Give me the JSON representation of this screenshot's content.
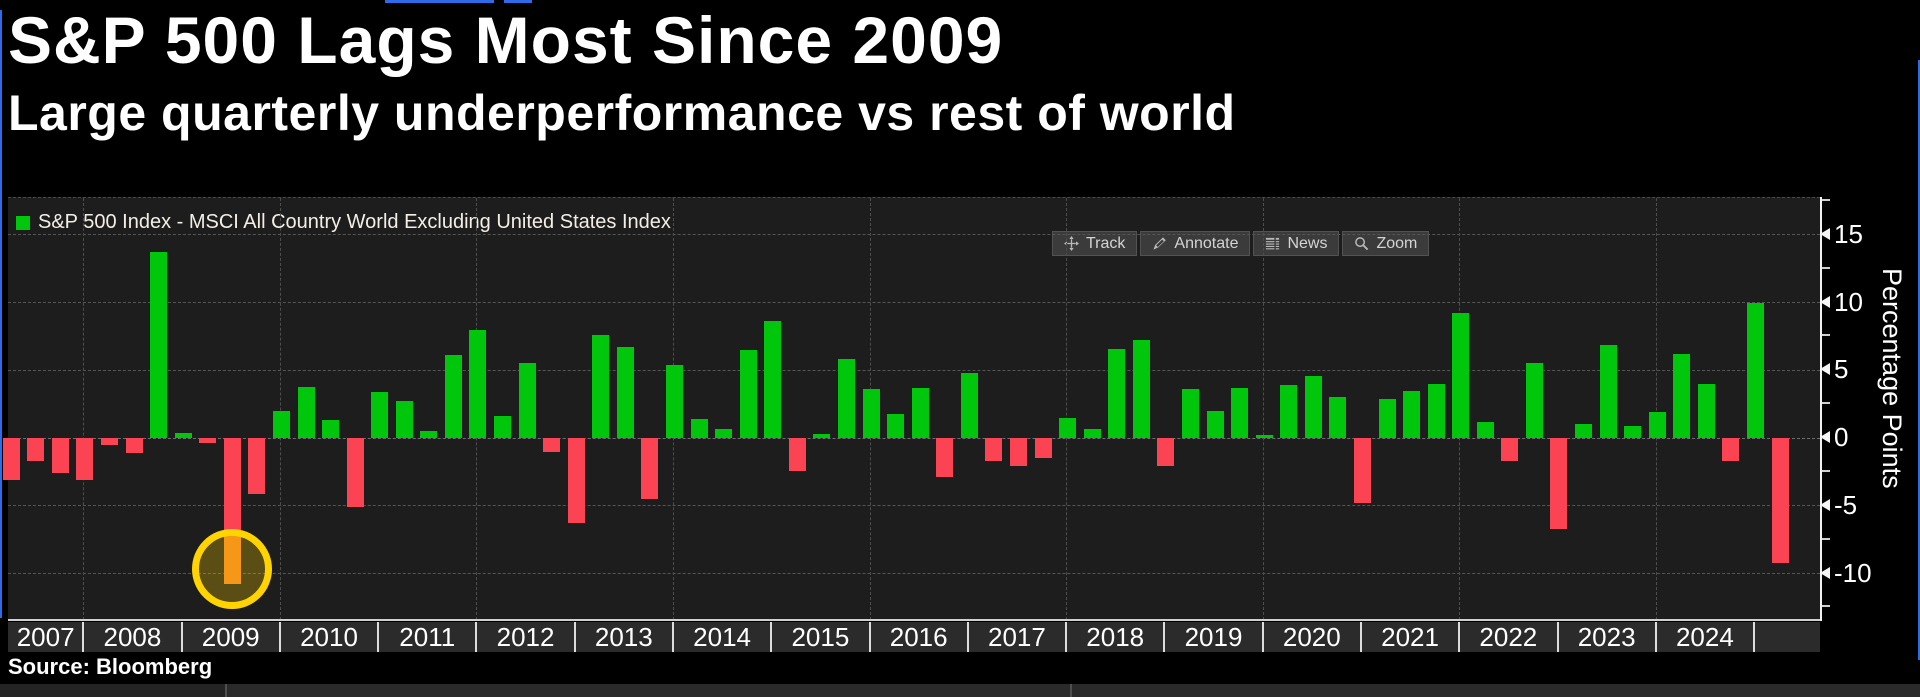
{
  "header": {
    "title": "S&P 500 Lags Most Since 2009",
    "subtitle": "Large quarterly underperformance vs rest of world"
  },
  "legend": {
    "label": "S&P 500 Index - MSCI All Country World Excluding United States Index",
    "swatch_color": "#00c60c"
  },
  "toolbar": {
    "buttons": [
      {
        "label": "Track",
        "icon": "move-icon"
      },
      {
        "label": "Annotate",
        "icon": "pencil-icon"
      },
      {
        "label": "News",
        "icon": "news-icon"
      },
      {
        "label": "Zoom",
        "icon": "magnifier-icon"
      }
    ]
  },
  "y_axis": {
    "title": "Percentage Points",
    "tick_labels": [
      "15",
      "10",
      "5",
      "0",
      "-5",
      "-10"
    ],
    "ticks": [
      15,
      10,
      5,
      0,
      -5,
      -10
    ],
    "minor_ticks": [
      17.5,
      12.5,
      7.5,
      2.5,
      -2.5,
      -7.5,
      -12.5
    ]
  },
  "x_axis": {
    "years": [
      "2007",
      "2008",
      "2009",
      "2010",
      "2011",
      "2012",
      "2013",
      "2014",
      "2015",
      "2016",
      "2017",
      "2018",
      "2019",
      "2020",
      "2021",
      "2022",
      "2023",
      "2024"
    ]
  },
  "source": "Source: Bloomberg",
  "colors": {
    "positive": "#00c60c",
    "negative": "#fb4353",
    "highlight_bar": "#f58220",
    "highlight_ring": "#ffd400",
    "plot_background": "#1d1d1d",
    "window_edge_blue": "#2e6be6"
  },
  "chart_data": {
    "type": "bar",
    "title": "S&P 500 Lags Most Since 2009",
    "subtitle": "Large quarterly underperformance vs rest of world",
    "series_name": "S&P 500 Index - MSCI All Country World Excluding United States Index",
    "unit": "percentage points",
    "ylabel": "Percentage Points",
    "ylim": [
      -13.2,
      17.7
    ],
    "yticks": [
      15,
      10,
      5,
      0,
      -5,
      -10
    ],
    "grid": "dashed",
    "legend_position": "top-left",
    "x": [
      "2007 Q1",
      "2007 Q2",
      "2007 Q3",
      "2007 Q4",
      "2008 Q1",
      "2008 Q2",
      "2008 Q3",
      "2008 Q4",
      "2009 Q1",
      "2009 Q2",
      "2009 Q3",
      "2009 Q4",
      "2010 Q1",
      "2010 Q2",
      "2010 Q3",
      "2010 Q4",
      "2011 Q1",
      "2011 Q2",
      "2011 Q3",
      "2011 Q4",
      "2012 Q1",
      "2012 Q2",
      "2012 Q3",
      "2012 Q4",
      "2013 Q1",
      "2013 Q2",
      "2013 Q3",
      "2013 Q4",
      "2014 Q1",
      "2014 Q2",
      "2014 Q3",
      "2014 Q4",
      "2015 Q1",
      "2015 Q2",
      "2015 Q3",
      "2015 Q4",
      "2016 Q1",
      "2016 Q2",
      "2016 Q3",
      "2016 Q4",
      "2017 Q1",
      "2017 Q2",
      "2017 Q3",
      "2017 Q4",
      "2018 Q1",
      "2018 Q2",
      "2018 Q3",
      "2018 Q4",
      "2019 Q1",
      "2019 Q2",
      "2019 Q3",
      "2019 Q4",
      "2020 Q1",
      "2020 Q2",
      "2020 Q3",
      "2020 Q4",
      "2021 Q1",
      "2021 Q2",
      "2021 Q3",
      "2021 Q4",
      "2022 Q1",
      "2022 Q2",
      "2022 Q3",
      "2022 Q4",
      "2023 Q1",
      "2023 Q2",
      "2023 Q3",
      "2023 Q4",
      "2024 Q1",
      "2024 Q2",
      "2024 Q3",
      "2024 Q4",
      "2025 Q1"
    ],
    "values": [
      -3.1,
      -1.7,
      -2.6,
      -3.1,
      -0.5,
      -1.1,
      13.7,
      0.4,
      -0.4,
      -10.8,
      -4.1,
      2.0,
      3.8,
      1.3,
      -5.1,
      3.4,
      2.7,
      0.5,
      6.1,
      8.0,
      1.6,
      5.5,
      -1.0,
      -6.3,
      7.6,
      6.7,
      -4.5,
      5.4,
      1.4,
      0.7,
      6.5,
      8.6,
      -2.4,
      0.3,
      5.8,
      3.6,
      1.8,
      3.7,
      -2.9,
      4.8,
      -1.7,
      -2.1,
      -1.5,
      1.5,
      0.7,
      6.6,
      7.2,
      -2.1,
      3.6,
      2.0,
      3.7,
      0.2,
      3.9,
      4.6,
      3.0,
      -4.8,
      2.9,
      3.5,
      4.0,
      9.2,
      1.2,
      -1.7,
      5.5,
      -6.7,
      1.0,
      6.9,
      0.9,
      1.9,
      6.2,
      4.0,
      -1.7,
      10.0,
      -9.2
    ],
    "highlight": {
      "x": "2009 Q2",
      "index": 9,
      "note": "circled in yellow, bar shown orange inside circle"
    }
  }
}
